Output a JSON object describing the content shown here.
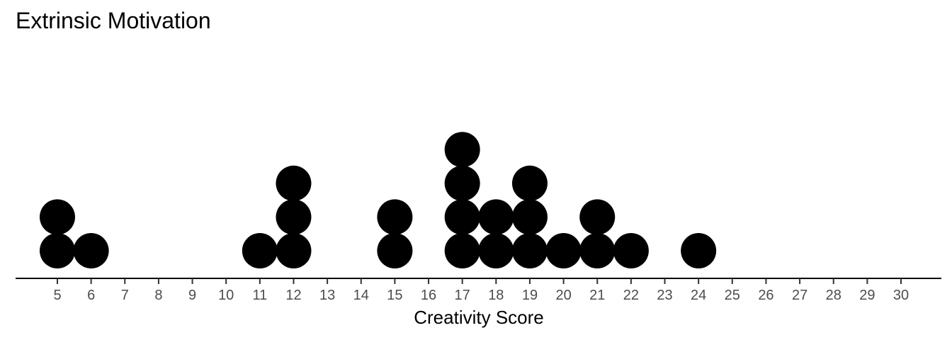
{
  "chart_data": {
    "type": "scatter",
    "subtype": "dot-plot",
    "title": "Extrinsic Motivation",
    "xlabel": "Creativity Score",
    "ylabel": "",
    "xlim": [
      3.8,
      31.2
    ],
    "x_ticks": [
      5,
      6,
      7,
      8,
      9,
      10,
      11,
      12,
      13,
      14,
      15,
      16,
      17,
      18,
      19,
      20,
      21,
      22,
      23,
      24,
      25,
      26,
      27,
      28,
      29,
      30
    ],
    "x": [
      5,
      6,
      11,
      12,
      15,
      17,
      18,
      19,
      20,
      21,
      22,
      24
    ],
    "counts": [
      2,
      1,
      1,
      3,
      2,
      4,
      2,
      3,
      1,
      2,
      1,
      1
    ],
    "grid": false,
    "dot_color": "#000000"
  }
}
